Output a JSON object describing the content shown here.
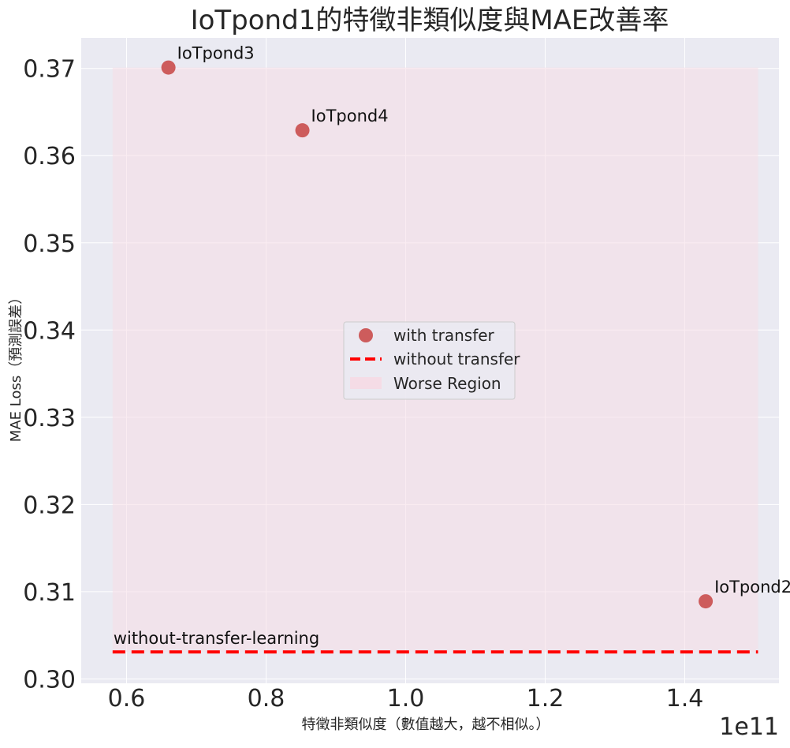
{
  "chart_data": {
    "type": "scatter",
    "title": "IoTpond1的特徵非類似度與MAE改善率",
    "xlabel": "特徵非類似度（數值越大，越不相似。）",
    "ylabel": "MAE Loss（預測誤差）",
    "x_offset_label": "1e11",
    "xlim": [
      0.535,
      1.535
    ],
    "ylim": [
      0.2995,
      0.3735
    ],
    "x_ticks": [
      0.6,
      0.8,
      1.0,
      1.2,
      1.4
    ],
    "x_tick_labels": [
      "0.6",
      "0.8",
      "1.0",
      "1.2",
      "1.4"
    ],
    "y_ticks": [
      0.3,
      0.31,
      0.32,
      0.33,
      0.34,
      0.35,
      0.36,
      0.37
    ],
    "y_tick_labels": [
      "0.30",
      "0.31",
      "0.32",
      "0.33",
      "0.34",
      "0.35",
      "0.36",
      "0.37"
    ],
    "grid": true,
    "legend_position": "center",
    "legend": [
      {
        "label": "with transfer",
        "kind": "marker",
        "color": "#cd5c5c"
      },
      {
        "label": "without transfer",
        "kind": "dashed-line",
        "color": "#ff0000"
      },
      {
        "label": "Worse Region",
        "kind": "patch",
        "color": "#f5dce6"
      }
    ],
    "points": [
      {
        "x": 1.43,
        "y": 0.3089,
        "label": "IoTpond2"
      },
      {
        "x": 0.66,
        "y": 0.3701,
        "label": "IoTpond3"
      },
      {
        "x": 0.852,
        "y": 0.3629,
        "label": "IoTpond4"
      }
    ],
    "baseline": {
      "y": 0.3031,
      "x_range": [
        0.58,
        1.505
      ],
      "label": "without-transfer-learning",
      "color": "#ff0000"
    },
    "worse_region": {
      "x_range": [
        0.58,
        1.505
      ],
      "y_range": [
        0.3031,
        0.3701
      ],
      "color": "#f5dce6"
    },
    "colors": {
      "background": "#eaeaf2",
      "point": "#cd5c5c",
      "baseline": "#ff0000",
      "grid": "#ffffff"
    }
  }
}
